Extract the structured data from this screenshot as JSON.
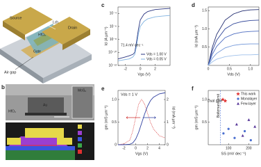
{
  "panel_a": {
    "source": "Source",
    "drain": "Drain",
    "dielectric": "HfO₂",
    "gate": "Gate",
    "air_gap": "Air gap",
    "channel_length": "Lch"
  },
  "panel_b": {
    "letter": "b",
    "tem_labels": {
      "electrode": "Au",
      "channel": "MoS₂",
      "dielectric": "HfO₂"
    },
    "eds_legend": [
      {
        "name": "Au",
        "color": "#e6d84a"
      },
      {
        "name": "Sb",
        "color": "#9b3fd0"
      },
      {
        "name": "Hf",
        "color": "#3a55e0"
      },
      {
        "name": "Si",
        "color": "#3aa84a"
      },
      {
        "name": "Mo",
        "color": "#e03030"
      }
    ]
  },
  "chart_data": [
    {
      "type": "line",
      "panel": "c",
      "x_label": "Vgs (V)",
      "y_label": "Id (A µm⁻¹)",
      "log_y": true,
      "xlim": [
        -3,
        4
      ],
      "xticks": [
        -2,
        0,
        2
      ],
      "ylim": [
        1e-12,
        0.001
      ],
      "yticks": [
        {
          "value": 0.0001,
          "label": "10⁻⁴"
        },
        {
          "value": 1e-06,
          "label": "10⁻⁶"
        },
        {
          "value": 1e-08,
          "label": "10⁻⁸"
        },
        {
          "value": 1e-10,
          "label": "10⁻¹⁰"
        },
        {
          "value": 1e-12,
          "label": "10⁻¹²"
        }
      ],
      "x": [
        -3,
        -2,
        -1.5,
        -1,
        -0.75,
        -0.5,
        -0.25,
        0,
        0.5,
        1,
        2,
        3,
        4
      ],
      "series": [
        {
          "name": "Vds = 1.00 V",
          "color": "#2a3580",
          "values": [
            1e-11,
            2e-11,
            3e-11,
            5e-11,
            1e-10,
            5e-09,
            4e-07,
            1e-05,
            8e-05,
            0.0002,
            0.0004,
            0.0005,
            0.0006
          ]
        },
        {
          "name": "Vds = 0.05 V",
          "color": "#7fb2e0",
          "values": [
            5e-12,
            8e-12,
            1e-11,
            2e-11,
            5e-11,
            1e-09,
            8e-08,
            1e-06,
            6e-06,
            1.5e-05,
            3e-05,
            4e-05,
            5e-05
          ]
        }
      ],
      "annotation": "71.4 mV dec⁻¹",
      "legend": "lower right"
    },
    {
      "type": "line",
      "panel": "d",
      "x_label": "Vds (V)",
      "y_label": "Id (mA µm⁻¹)",
      "xlim": [
        0,
        1.2
      ],
      "xticks": [
        0,
        0.5,
        {
          "value": 1,
          "label": "1.0"
        }
      ],
      "ylim": [
        0,
        1.6
      ],
      "yticks": [
        0.5,
        {
          "value": 1,
          "label": "1.0"
        },
        1.5
      ],
      "x": [
        0,
        0.1,
        0.2,
        0.4,
        0.6,
        0.8,
        1.0,
        1.2
      ],
      "series": [
        {
          "color": "#1f2a6e",
          "values": [
            0,
            0.51,
            0.85,
            1.24,
            1.41,
            1.49,
            1.52,
            1.53
          ]
        },
        {
          "color": "#33489a",
          "values": [
            0,
            0.41,
            0.69,
            1.0,
            1.14,
            1.2,
            1.23,
            1.24
          ]
        },
        {
          "color": "#4d6cc0",
          "values": [
            0,
            0.31,
            0.52,
            0.76,
            0.86,
            0.91,
            0.93,
            0.94
          ]
        },
        {
          "color": "#6f95d8",
          "values": [
            0,
            0.2,
            0.33,
            0.48,
            0.55,
            0.58,
            0.59,
            0.59
          ]
        },
        {
          "color": "#9fc0ea",
          "values": [
            0,
            0.1,
            0.17,
            0.24,
            0.27,
            0.29,
            0.29,
            0.3
          ]
        }
      ]
    },
    {
      "type": "line",
      "panel": "e",
      "annotation": "Vds = 1 V",
      "x_label": "Vgs (V)",
      "y_label": "gm (mS µm⁻¹)",
      "y2_label": "Id (mA µm⁻¹)",
      "xlim": [
        -3,
        5
      ],
      "xticks": [
        -2,
        0,
        2,
        4
      ],
      "ylim": [
        0,
        1.2
      ],
      "yticks": [
        0,
        0.5,
        {
          "value": 1,
          "label": "1.0"
        }
      ],
      "y2lim": [
        0,
        2.4
      ],
      "y2ticks": [
        0,
        1,
        2
      ],
      "x": [
        -3,
        -2,
        -1,
        -0.5,
        0,
        0.5,
        1,
        1.5,
        2,
        2.5,
        3,
        4,
        5
      ],
      "series": [
        {
          "color": "#e06060",
          "dashed": true,
          "values": [
            0,
            0.02,
            0.1,
            0.3,
            0.6,
            0.9,
            1.0,
            0.9,
            0.7,
            0.5,
            0.35,
            0.2,
            0.15
          ]
        },
        {
          "color": "#3040a0",
          "axis": "y2",
          "values": [
            0,
            0,
            0.02,
            0.08,
            0.25,
            0.55,
            0.95,
            1.35,
            1.7,
            1.95,
            2.1,
            2.25,
            2.3
          ]
        }
      ]
    },
    {
      "type": "scatter",
      "panel": "f",
      "x_label": "SS (mV dec⁻¹)",
      "y_label": "gm (mS µm⁻¹)",
      "xlim": [
        0,
        250
      ],
      "xticks": [
        100,
        200
      ],
      "ylim": [
        0,
        1.2
      ],
      "yticks": [
        0.5,
        {
          "value": 1,
          "label": "1.0"
        }
      ],
      "reference_line": {
        "x": 60,
        "label": "Boltzmann limit"
      },
      "annotation": "Dual gate",
      "legend": "upper right",
      "series": [
        {
          "name": "This work",
          "color": "#e03030",
          "marker": "star",
          "x": [
            72,
            84
          ],
          "values": [
            1.0,
            0.97
          ]
        },
        {
          "name": "Monolayer",
          "color": "#4a6fd0",
          "marker": "circle",
          "x": [
            75,
            100,
            130,
            180,
            210
          ],
          "values": [
            0.25,
            0.35,
            0.15,
            0.3,
            0.1
          ]
        },
        {
          "name": "Few-layer",
          "color": "#5a3a9a",
          "marker": "triangle",
          "x": [
            140,
            170,
            200,
            230
          ],
          "values": [
            0.45,
            0.2,
            0.55,
            0.4
          ]
        }
      ]
    }
  ]
}
